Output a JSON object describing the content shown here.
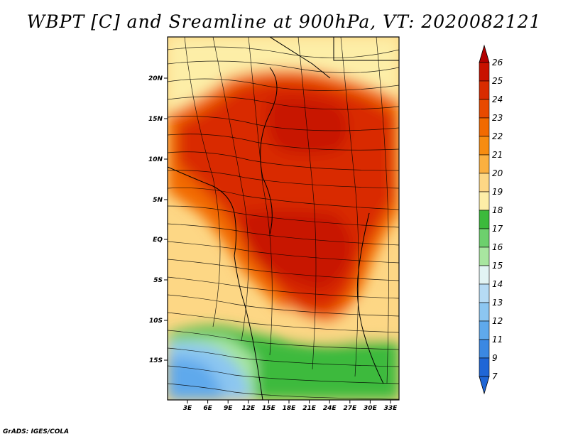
{
  "title": "WBPT [C] and Sreamline at 900hPa, VT: 2020082121",
  "credit": "GrADS: IGES/COLA",
  "map": {
    "lat_labels": [
      "20N",
      "15N",
      "10N",
      "5N",
      "EQ",
      "5S",
      "10S",
      "15S"
    ],
    "lon_labels": [
      "3E",
      "6E",
      "9E",
      "12E",
      "15E",
      "18E",
      "21E",
      "24E",
      "27E",
      "30E",
      "33E"
    ]
  },
  "colorbar": {
    "labels": [
      "26",
      "25",
      "24",
      "23",
      "22",
      "21",
      "20",
      "19",
      "18",
      "17",
      "16",
      "15",
      "14",
      "13",
      "12",
      "11",
      "9",
      "7"
    ],
    "colors": [
      "#b30000",
      "#c81200",
      "#d92c00",
      "#e84a00",
      "#f26a00",
      "#f78c10",
      "#fbb040",
      "#fdd785",
      "#fdeea7",
      "#3cba3c",
      "#6dd06d",
      "#a8e6a0",
      "#e2f4f4",
      "#b6dbf5",
      "#8cc6f1",
      "#5fa9ec",
      "#3b88e2",
      "#1f66d6"
    ]
  }
}
